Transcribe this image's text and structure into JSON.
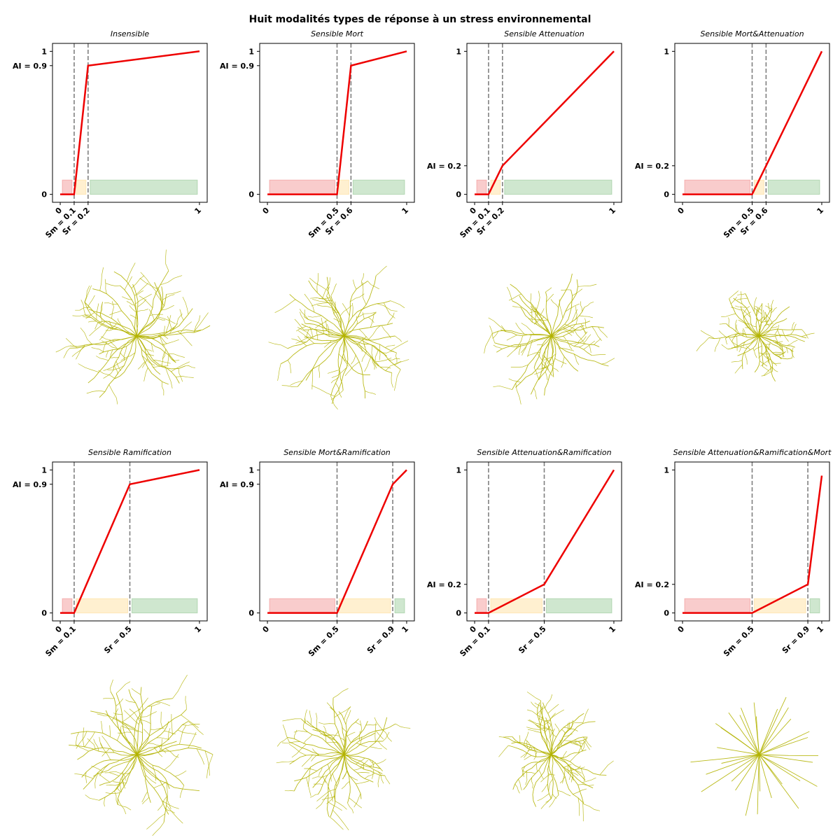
{
  "title": "Huit modalités types de réponse à un stress environnemental",
  "colors": {
    "curve": "#ee0000",
    "threshold_line": "#808080",
    "zone_mort": "#f08080",
    "zone_attenuation": "#ffd98a",
    "zone_sain": "#86c286",
    "root": "#b3b300"
  },
  "icons": [
    "root-system-icon"
  ],
  "chart_data": [
    {
      "type": "line",
      "title": "Insensible",
      "sm": 0.1,
      "sr": 0.2,
      "ai": 0.9,
      "x": [
        0,
        0.1,
        0.2,
        1
      ],
      "y": [
        0,
        0,
        0.9,
        1
      ],
      "xlim": [
        0,
        1
      ],
      "ylim": [
        0,
        1
      ],
      "xticks": [
        "0",
        "Sm = 0.1",
        "Sr = 0.2",
        "1"
      ],
      "yticks": [
        "0",
        "AI = 0.9",
        "1"
      ],
      "zones": [
        "mort",
        "attenuation",
        "sain"
      ]
    },
    {
      "type": "line",
      "title": "Sensible Mort",
      "sm": 0.5,
      "sr": 0.6,
      "ai": 0.9,
      "x": [
        0,
        0.5,
        0.6,
        1
      ],
      "y": [
        0,
        0,
        0.9,
        1
      ],
      "xlim": [
        0,
        1
      ],
      "ylim": [
        0,
        1
      ],
      "xticks": [
        "0",
        "Sm = 0.5",
        "Sr = 0.6",
        "1"
      ],
      "yticks": [
        "0",
        "AI = 0.9",
        "1"
      ],
      "zones": [
        "mort",
        "attenuation",
        "sain"
      ]
    },
    {
      "type": "line",
      "title": "Sensible Attenuation",
      "sm": 0.1,
      "sr": 0.2,
      "ai": 0.2,
      "x": [
        0,
        0.1,
        0.2,
        1
      ],
      "y": [
        0,
        0,
        0.2,
        1
      ],
      "xlim": [
        0,
        1
      ],
      "ylim": [
        0,
        1
      ],
      "xticks": [
        "0",
        "Sm = 0.1",
        "Sr = 0.2",
        "1"
      ],
      "yticks": [
        "0",
        "AI = 0.2",
        "1"
      ],
      "zones": [
        "mort",
        "attenuation",
        "sain"
      ]
    },
    {
      "type": "line",
      "title": "Sensible Mort&Attenuation",
      "sm": 0.5,
      "sr": 0.6,
      "ai": 0.2,
      "x": [
        0,
        0.5,
        0.6,
        1
      ],
      "y": [
        0,
        0,
        0.2,
        1
      ],
      "xlim": [
        0,
        1
      ],
      "ylim": [
        0,
        1
      ],
      "xticks": [
        "0",
        "Sm = 0.5",
        "Sr = 0.6",
        "1"
      ],
      "yticks": [
        "0",
        "AI = 0.2",
        "1"
      ],
      "zones": [
        "mort",
        "attenuation",
        "sain"
      ]
    },
    {
      "type": "line",
      "title": "Sensible Ramification",
      "sm": 0.1,
      "sr": 0.5,
      "ai": 0.9,
      "x": [
        0,
        0.1,
        0.5,
        1
      ],
      "y": [
        0,
        0,
        0.9,
        1
      ],
      "xlim": [
        0,
        1
      ],
      "ylim": [
        0,
        1
      ],
      "xticks": [
        "0",
        "Sm = 0.1",
        "Sr = 0.5",
        "1"
      ],
      "yticks": [
        "0",
        "AI = 0.9",
        "1"
      ],
      "zones": [
        "mort",
        "attenuation",
        "sain"
      ]
    },
    {
      "type": "line",
      "title": "Sensible Mort&Ramification",
      "sm": 0.5,
      "sr": 0.9,
      "ai": 0.9,
      "x": [
        0,
        0.5,
        0.9,
        1
      ],
      "y": [
        0,
        0,
        0.9,
        1
      ],
      "xlim": [
        0,
        1
      ],
      "ylim": [
        0,
        1
      ],
      "xticks": [
        "0",
        "Sm = 0.5",
        "Sr = 0.9",
        "1"
      ],
      "yticks": [
        "0",
        "AI = 0.9",
        "1"
      ],
      "zones": [
        "mort",
        "attenuation",
        "sain"
      ]
    },
    {
      "type": "line",
      "title": "Sensible Attenuation&Ramification",
      "sm": 0.1,
      "sr": 0.5,
      "ai": 0.2,
      "x": [
        0,
        0.1,
        0.5,
        1
      ],
      "y": [
        0,
        0,
        0.2,
        1
      ],
      "xlim": [
        0,
        1
      ],
      "ylim": [
        0,
        1
      ],
      "xticks": [
        "0",
        "Sm = 0.1",
        "Sr = 0.5",
        "1"
      ],
      "yticks": [
        "0",
        "AI = 0.2",
        "1"
      ],
      "zones": [
        "mort",
        "attenuation",
        "sain"
      ]
    },
    {
      "type": "line",
      "title": "Sensible Attenuation&Ramification&Mort",
      "sm": 0.5,
      "sr": 0.9,
      "ai": 0.2,
      "x": [
        0,
        0.5,
        0.9,
        1
      ],
      "y": [
        0,
        0,
        0.2,
        0.96
      ],
      "xlim": [
        0,
        1
      ],
      "ylim": [
        0,
        1
      ],
      "xticks": [
        "0",
        "Sm = 0.5",
        "Sr = 0.9",
        "1"
      ],
      "yticks": [
        "0",
        "AI = 0.2",
        "1"
      ],
      "zones": [
        "mort",
        "attenuation",
        "sain"
      ]
    }
  ]
}
